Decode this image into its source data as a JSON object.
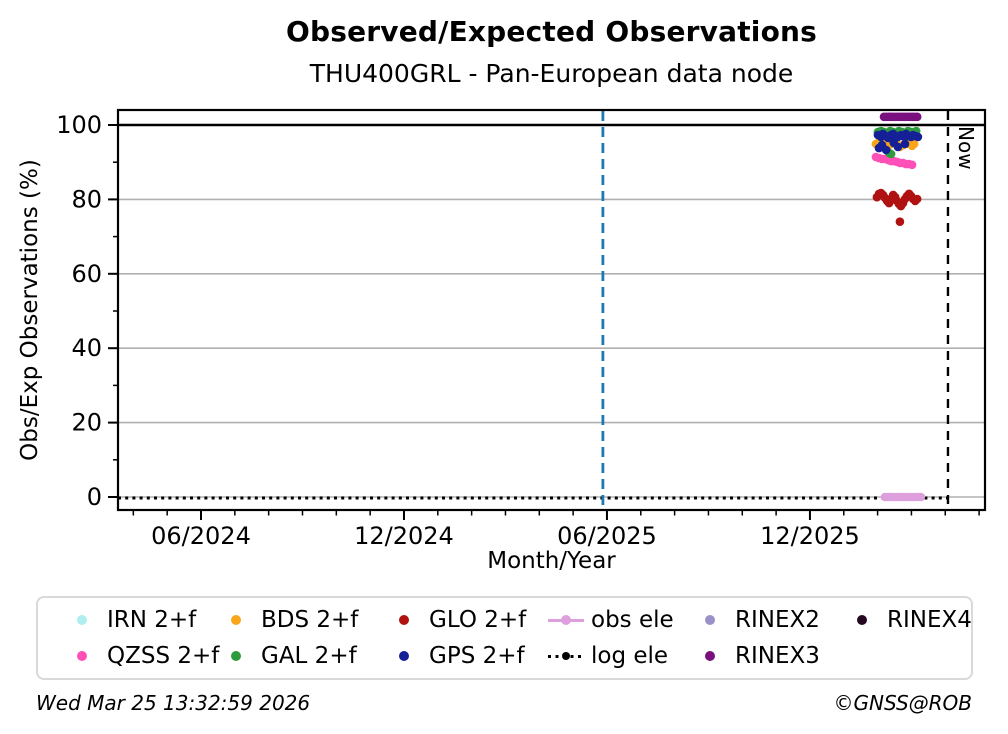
{
  "header": {
    "title": "Observed/Expected Observations",
    "subtitle": "THU400GRL - Pan-European data node"
  },
  "axes": {
    "x_label": "Month/Year",
    "y_label": "Obs/Exp Observations (%)"
  },
  "annotations": {
    "now_label": "Now"
  },
  "footer": {
    "timestamp": "Wed Mar 25 13:32:59 2026",
    "credit": "©GNSS@ROB"
  },
  "legend": {
    "fill_order": "column-major",
    "items": [
      {
        "label": "IRN 2+f",
        "color": "#AFEEEE",
        "marker": "dot"
      },
      {
        "label": "QZSS 2+f",
        "color": "#FF50B8",
        "marker": "dot"
      },
      {
        "label": "BDS 2+f",
        "color": "#F9A61A",
        "marker": "dot"
      },
      {
        "label": "GAL 2+f",
        "color": "#2E9B3E",
        "marker": "dot"
      },
      {
        "label": "GLO 2+f",
        "color": "#B01212",
        "marker": "dot"
      },
      {
        "label": "GPS 2+f",
        "color": "#152097",
        "marker": "dot"
      },
      {
        "label": "obs ele",
        "color": "#DDA0DD",
        "marker": "line-dot"
      },
      {
        "label": "log ele",
        "color": "#000000",
        "marker": "dotted-line-dot"
      },
      {
        "label": "RINEX2",
        "color": "#9A91C8",
        "marker": "dot"
      },
      {
        "label": "RINEX3",
        "color": "#7A107F",
        "marker": "dot"
      },
      {
        "label": "RINEX4",
        "color": "#260722",
        "marker": "dot"
      }
    ]
  },
  "chart_data": {
    "type": "scatter",
    "title": "Observed/Expected Observations",
    "subtitle": "THU400GRL - Pan-European data node",
    "xlabel": "Month/Year",
    "ylabel": "Obs/Exp Observations (%)",
    "x_epoch_note": "x values are months since 2024-06-01",
    "x_axis": {
      "range_months": [
        -2.454,
        23.177
      ],
      "major_ticks": [
        {
          "m": 0,
          "label": "06/2024"
        },
        {
          "m": 6,
          "label": "12/2024"
        },
        {
          "m": 12,
          "label": "06/2025"
        },
        {
          "m": 18,
          "label": "12/2025"
        }
      ],
      "minor_tick_every_months": 1
    },
    "y_axis": {
      "range": [
        -3.5,
        104.3
      ],
      "major_ticks": [
        0,
        20,
        40,
        60,
        80,
        100
      ],
      "minor_ticks": [
        10,
        30,
        50,
        70,
        90
      ],
      "gray_gridlines_at": [
        0,
        20,
        40,
        60,
        80
      ],
      "black_line_at": 100,
      "grid_color": "#b0b0b0"
    },
    "vlines": [
      {
        "name": "reference",
        "m": 11.88,
        "color": "#1f77b4",
        "style": "dashed"
      },
      {
        "name": "now",
        "m": 22.08,
        "color": "#000000",
        "style": "dashed",
        "label": "Now"
      }
    ],
    "zero_dotted_line": {
      "value": 0,
      "style": "dotted",
      "color": "#000000",
      "from_m": -2.454,
      "to_m": 22.08
    },
    "series": [
      {
        "name": "obs ele",
        "color": "#DDA0DD",
        "points": [
          [
            20.22,
            0
          ],
          [
            20.31,
            0
          ],
          [
            20.4,
            0
          ],
          [
            20.48,
            0
          ],
          [
            20.57,
            0
          ],
          [
            20.66,
            0
          ],
          [
            20.75,
            0
          ],
          [
            20.84,
            0
          ],
          [
            20.93,
            0
          ],
          [
            21.02,
            0
          ],
          [
            21.11,
            0
          ],
          [
            21.2,
            0
          ],
          [
            21.28,
            0
          ]
        ]
      },
      {
        "name": "GLO 2+f",
        "color": "#B01212",
        "points": [
          [
            19.98,
            80.6
          ],
          [
            20.04,
            81.5
          ],
          [
            20.1,
            81.7
          ],
          [
            20.16,
            81.2
          ],
          [
            20.22,
            80.4
          ],
          [
            20.28,
            79.6
          ],
          [
            20.34,
            79.0
          ],
          [
            20.4,
            80.1
          ],
          [
            20.46,
            81.2
          ],
          [
            20.52,
            80.6
          ],
          [
            20.57,
            79.6
          ],
          [
            20.63,
            78.8
          ],
          [
            20.69,
            78.2
          ],
          [
            20.75,
            79.0
          ],
          [
            20.81,
            80.1
          ],
          [
            20.87,
            80.9
          ],
          [
            20.93,
            81.5
          ],
          [
            20.99,
            80.9
          ],
          [
            21.05,
            80.1
          ],
          [
            21.11,
            79.6
          ],
          [
            21.17,
            80.1
          ],
          [
            20.66,
            74.0
          ]
        ]
      },
      {
        "name": "QZSS 2+f",
        "color": "#FF50B8",
        "points": [
          [
            19.95,
            91.4
          ],
          [
            20.04,
            91.1
          ],
          [
            20.13,
            90.9
          ],
          [
            20.22,
            90.9
          ],
          [
            20.31,
            90.6
          ],
          [
            20.4,
            90.3
          ],
          [
            20.48,
            90.3
          ],
          [
            20.57,
            90.1
          ],
          [
            20.66,
            89.8
          ],
          [
            20.75,
            89.8
          ],
          [
            20.84,
            89.5
          ],
          [
            20.93,
            89.5
          ],
          [
            21.02,
            89.3
          ]
        ]
      },
      {
        "name": "BDS 2+f",
        "color": "#F9A61A",
        "points": [
          [
            19.95,
            94.9
          ],
          [
            20.04,
            95.4
          ],
          [
            20.13,
            95.7
          ],
          [
            20.22,
            95.2
          ],
          [
            20.31,
            94.4
          ],
          [
            20.4,
            94.9
          ],
          [
            20.48,
            95.4
          ],
          [
            20.57,
            94.9
          ],
          [
            20.66,
            94.1
          ],
          [
            20.75,
            94.6
          ],
          [
            20.84,
            95.2
          ],
          [
            20.93,
            94.9
          ],
          [
            21.02,
            94.4
          ],
          [
            21.08,
            94.9
          ]
        ]
      },
      {
        "name": "GAL 2+f",
        "color": "#2E9B3E",
        "points": [
          [
            20.01,
            98.1
          ],
          [
            20.1,
            98.4
          ],
          [
            20.19,
            98.1
          ],
          [
            20.28,
            97.8
          ],
          [
            20.37,
            98.4
          ],
          [
            20.46,
            98.1
          ],
          [
            20.54,
            97.8
          ],
          [
            20.63,
            98.4
          ],
          [
            20.72,
            98.1
          ],
          [
            20.81,
            97.8
          ],
          [
            20.9,
            98.4
          ],
          [
            20.99,
            98.1
          ],
          [
            21.08,
            97.8
          ],
          [
            21.14,
            98.4
          ],
          [
            20.34,
            92.5
          ],
          [
            20.4,
            92.2
          ]
        ]
      },
      {
        "name": "GPS 2+f",
        "color": "#152097",
        "points": [
          [
            20.01,
            97.3
          ],
          [
            20.1,
            96.8
          ],
          [
            20.16,
            97.6
          ],
          [
            20.25,
            97.0
          ],
          [
            20.31,
            96.5
          ],
          [
            20.4,
            97.3
          ],
          [
            20.46,
            97.6
          ],
          [
            20.54,
            97.0
          ],
          [
            20.6,
            96.8
          ],
          [
            20.69,
            97.3
          ],
          [
            20.75,
            97.0
          ],
          [
            20.84,
            97.6
          ],
          [
            20.9,
            97.0
          ],
          [
            20.99,
            96.8
          ],
          [
            21.05,
            97.3
          ],
          [
            21.14,
            97.0
          ],
          [
            21.19,
            96.8
          ],
          [
            20.04,
            93.8
          ],
          [
            20.13,
            94.6
          ],
          [
            20.25,
            93.3
          ],
          [
            20.48,
            95.2
          ],
          [
            20.6,
            94.1
          ],
          [
            20.81,
            94.9
          ]
        ]
      },
      {
        "name": "RINEX3",
        "color": "#7A107F",
        "points": [
          [
            20.19,
            102.2
          ],
          [
            20.26,
            102.2
          ],
          [
            20.33,
            102.2
          ],
          [
            20.4,
            102.2
          ],
          [
            20.47,
            102.2
          ],
          [
            20.54,
            102.2
          ],
          [
            20.61,
            102.2
          ],
          [
            20.68,
            102.2
          ],
          [
            20.75,
            102.2
          ],
          [
            20.82,
            102.2
          ],
          [
            20.89,
            102.2
          ],
          [
            20.96,
            102.2
          ],
          [
            21.03,
            102.2
          ],
          [
            21.1,
            102.2
          ],
          [
            21.17,
            102.2
          ]
        ]
      },
      {
        "name": "IRN 2+f",
        "color": "#AFEEEE",
        "points": []
      },
      {
        "name": "log ele",
        "color": "#000000",
        "points": []
      },
      {
        "name": "RINEX2",
        "color": "#9A91C8",
        "points": []
      },
      {
        "name": "RINEX4",
        "color": "#260722",
        "points": []
      }
    ]
  }
}
